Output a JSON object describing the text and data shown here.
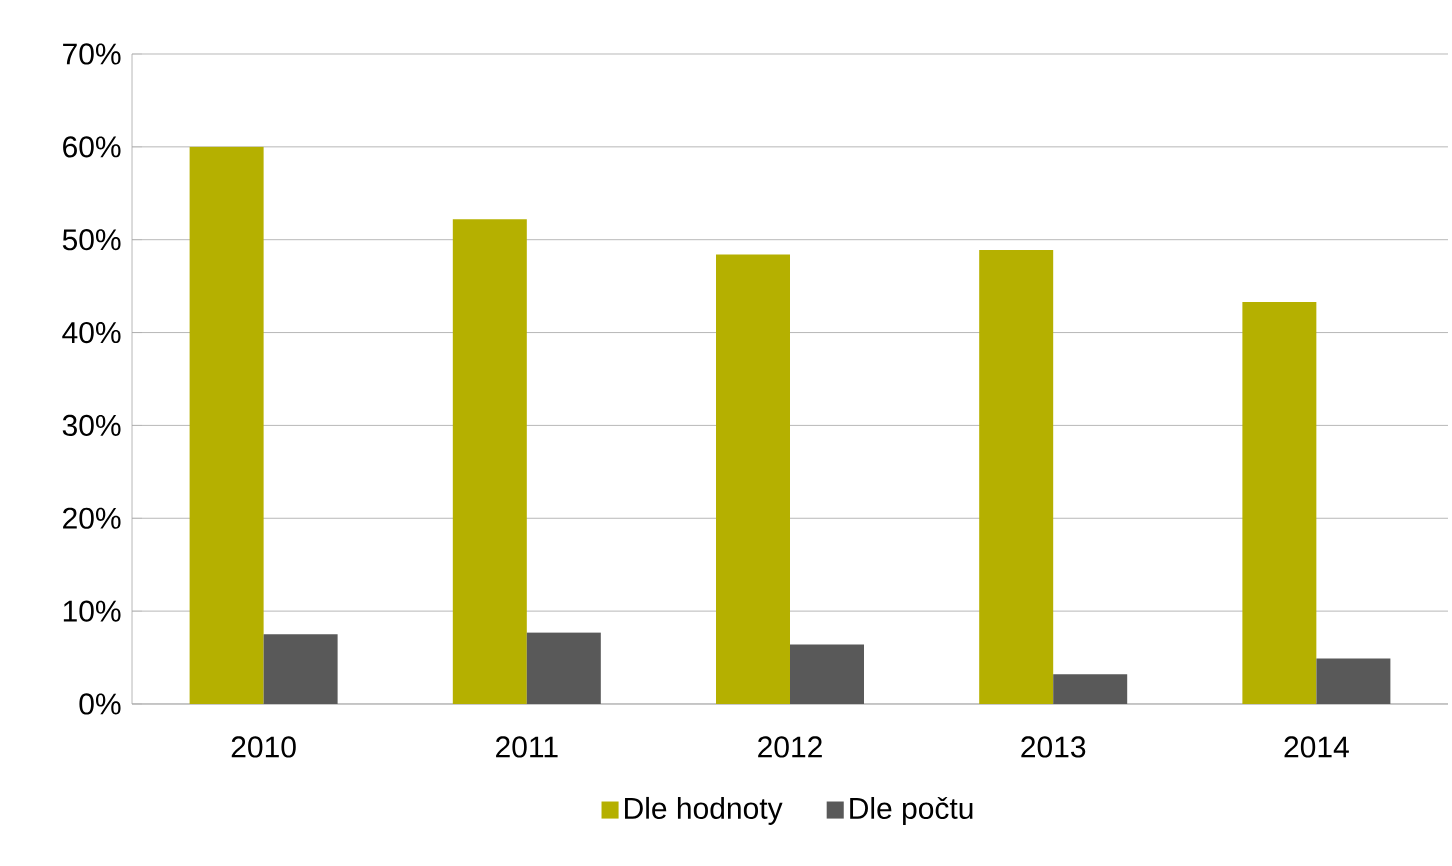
{
  "chart_data": {
    "type": "bar",
    "categories": [
      "2010",
      "2011",
      "2012",
      "2013",
      "2014"
    ],
    "series": [
      {
        "name": "Dle hodnoty",
        "color": "#b5b000",
        "values": [
          60,
          52.2,
          48.4,
          48.9,
          43.3
        ]
      },
      {
        "name": "Dle počtu",
        "color": "#595959",
        "values": [
          7.5,
          7.7,
          6.4,
          3.2,
          4.9
        ]
      }
    ],
    "ylim": [
      0,
      70
    ],
    "yticks": [
      {
        "value": 0,
        "label": "0%"
      },
      {
        "value": 10,
        "label": "10%"
      },
      {
        "value": 20,
        "label": "20%"
      },
      {
        "value": 30,
        "label": "30%"
      },
      {
        "value": 40,
        "label": "40%"
      },
      {
        "value": 50,
        "label": "50%"
      },
      {
        "value": 60,
        "label": "60%"
      },
      {
        "value": 70,
        "label": "70%"
      }
    ],
    "grid": "y",
    "legend": "bottom"
  }
}
